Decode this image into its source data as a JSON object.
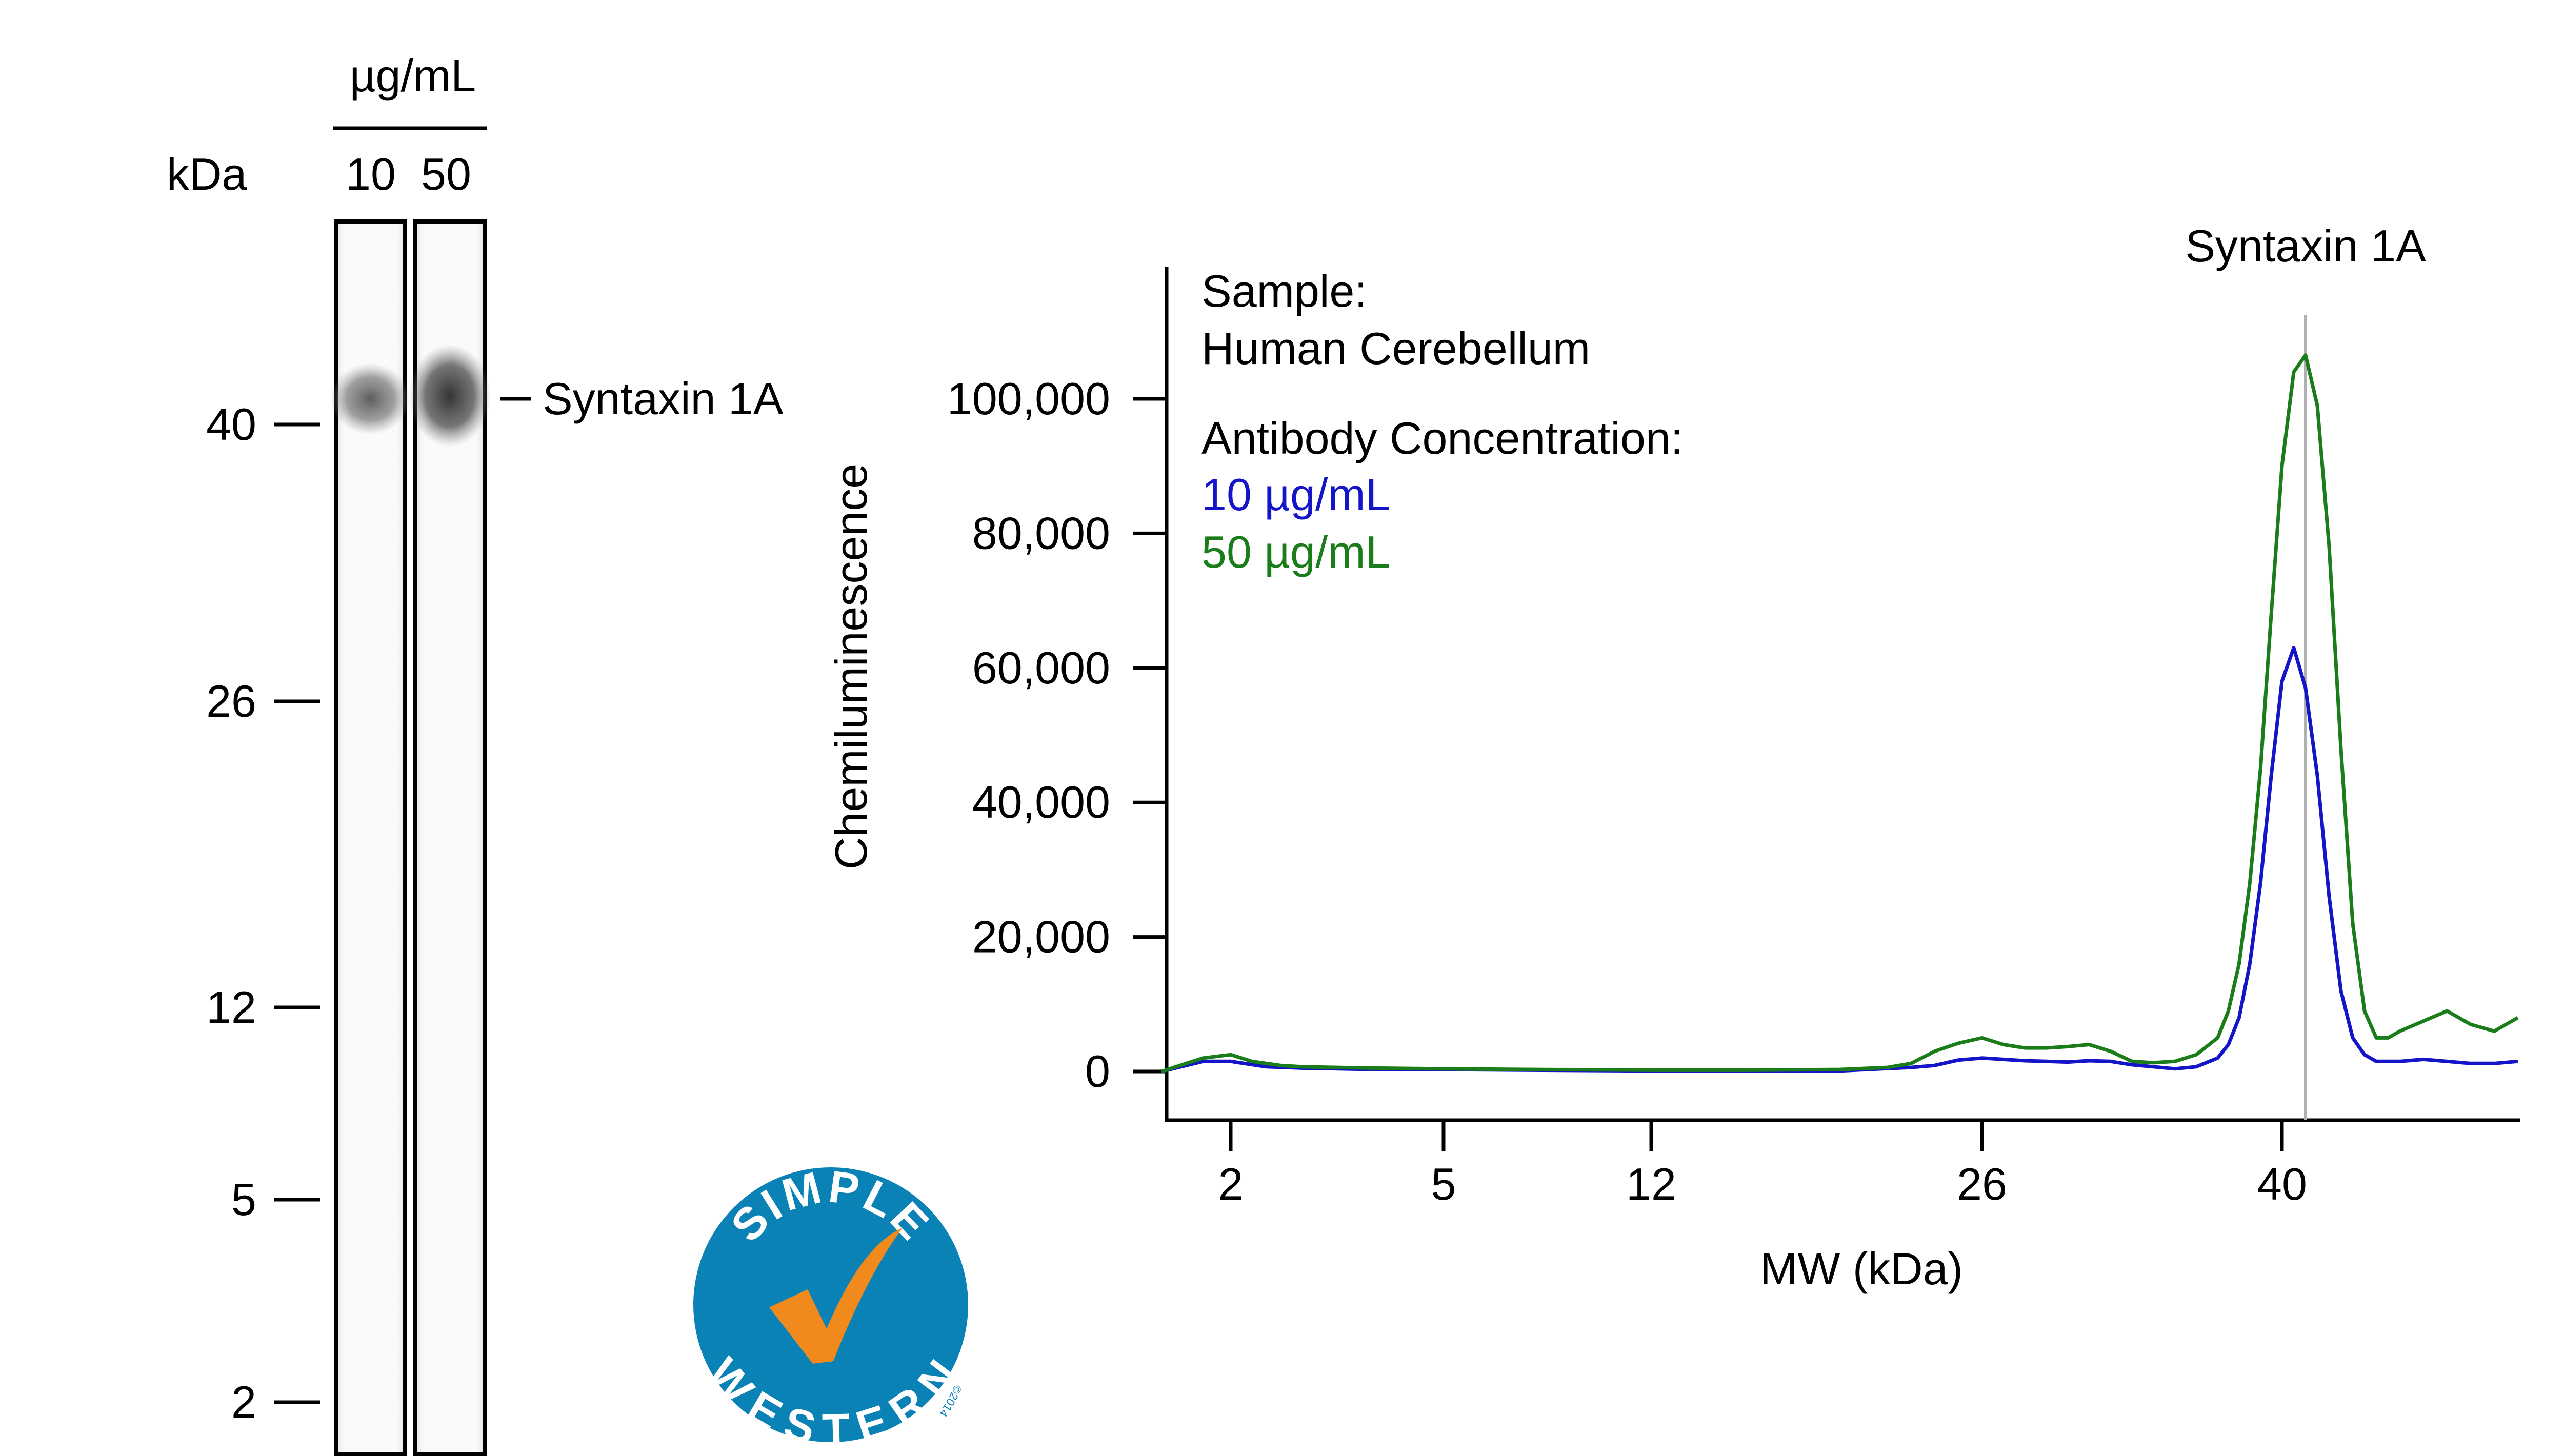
{
  "blot": {
    "unit_header": "µg/mL",
    "kda_label": "kDa",
    "lanes": [
      "10",
      "50"
    ],
    "band_label": "Syntaxin 1A",
    "band_kda": 40,
    "ladder": [
      {
        "kda": 40,
        "label": "40"
      },
      {
        "kda": 26,
        "label": "26"
      },
      {
        "kda": 12,
        "label": "12"
      },
      {
        "kda": 5,
        "label": "5"
      },
      {
        "kda": 2,
        "label": "2"
      }
    ]
  },
  "logo": {
    "top_text": "SIMPLE",
    "bottom_text": "WESTERN",
    "copyright": "©2014",
    "circle_color": "#0b82b5",
    "check_color": "#f08a1c"
  },
  "chart_data": {
    "type": "line",
    "ylabel": "Chemiluminescence",
    "xlabel": "MW (kDa)",
    "ylim": [
      -5000,
      117000
    ],
    "yticks": [
      0,
      20000,
      40000,
      60000,
      80000,
      100000
    ],
    "ytick_labels": [
      "0",
      "20,000",
      "40,000",
      "60,000",
      "80,000",
      "100,000"
    ],
    "xticks": [
      {
        "kda": 2,
        "label": "2"
      },
      {
        "kda": 5,
        "label": "5"
      },
      {
        "kda": 12,
        "label": "12"
      },
      {
        "kda": 26,
        "label": "26"
      },
      {
        "kda": 40,
        "label": "40"
      }
    ],
    "peak_label": "Syntaxin 1A",
    "peak_kda": 41,
    "legend": {
      "sample_label": "Sample:",
      "sample_value": "Human Cerebellum",
      "conc_label": "Antibody Concentration:"
    },
    "series": [
      {
        "name": "10 µg/mL",
        "color": "#1414c8",
        "x": [
          1.5,
          1.8,
          2,
          2.5,
          3,
          4,
          5,
          8,
          12,
          16,
          20,
          23,
          24,
          25,
          26,
          27,
          28,
          29,
          30,
          31,
          32,
          33,
          34,
          35,
          36,
          37,
          37.5,
          38,
          38.5,
          39,
          39.5,
          40,
          40.5,
          41,
          41.5,
          42,
          42.5,
          43,
          43.5,
          44,
          45,
          46,
          47,
          48,
          49,
          50
        ],
        "values": [
          0,
          1500,
          1500,
          700,
          500,
          300,
          300,
          200,
          100,
          100,
          100,
          600,
          900,
          1700,
          2000,
          1800,
          1600,
          1500,
          1400,
          1600,
          1500,
          1000,
          700,
          400,
          700,
          2000,
          4000,
          8000,
          16000,
          28000,
          44000,
          58000,
          63000,
          57000,
          44000,
          26000,
          12000,
          5000,
          2500,
          1500,
          1500,
          1800,
          1500,
          1200,
          1200,
          1500
        ]
      },
      {
        "name": "50 µg/mL",
        "color": "#1a7d1a",
        "x": [
          1.5,
          1.8,
          2,
          2.3,
          2.7,
          3,
          4,
          5,
          8,
          12,
          16,
          20,
          22,
          23,
          24,
          25,
          26,
          27,
          28,
          29,
          30,
          31,
          32,
          33,
          34,
          35,
          36,
          37,
          37.5,
          38,
          38.5,
          39,
          39.5,
          40,
          40.5,
          41,
          41.5,
          42,
          42.5,
          43,
          43.5,
          44,
          44.5,
          45,
          46,
          47,
          48,
          49,
          50
        ],
        "values": [
          0,
          2000,
          2500,
          1500,
          900,
          700,
          500,
          400,
          300,
          200,
          200,
          300,
          600,
          1200,
          3000,
          4200,
          5000,
          4000,
          3500,
          3500,
          3700,
          4000,
          3000,
          1500,
          1300,
          1500,
          2500,
          5000,
          9000,
          16000,
          28000,
          45000,
          68000,
          90000,
          104000,
          106500,
          99000,
          78000,
          48000,
          22000,
          9000,
          5000,
          5000,
          6000,
          7500,
          9000,
          7000,
          6000,
          8000
        ]
      }
    ]
  }
}
